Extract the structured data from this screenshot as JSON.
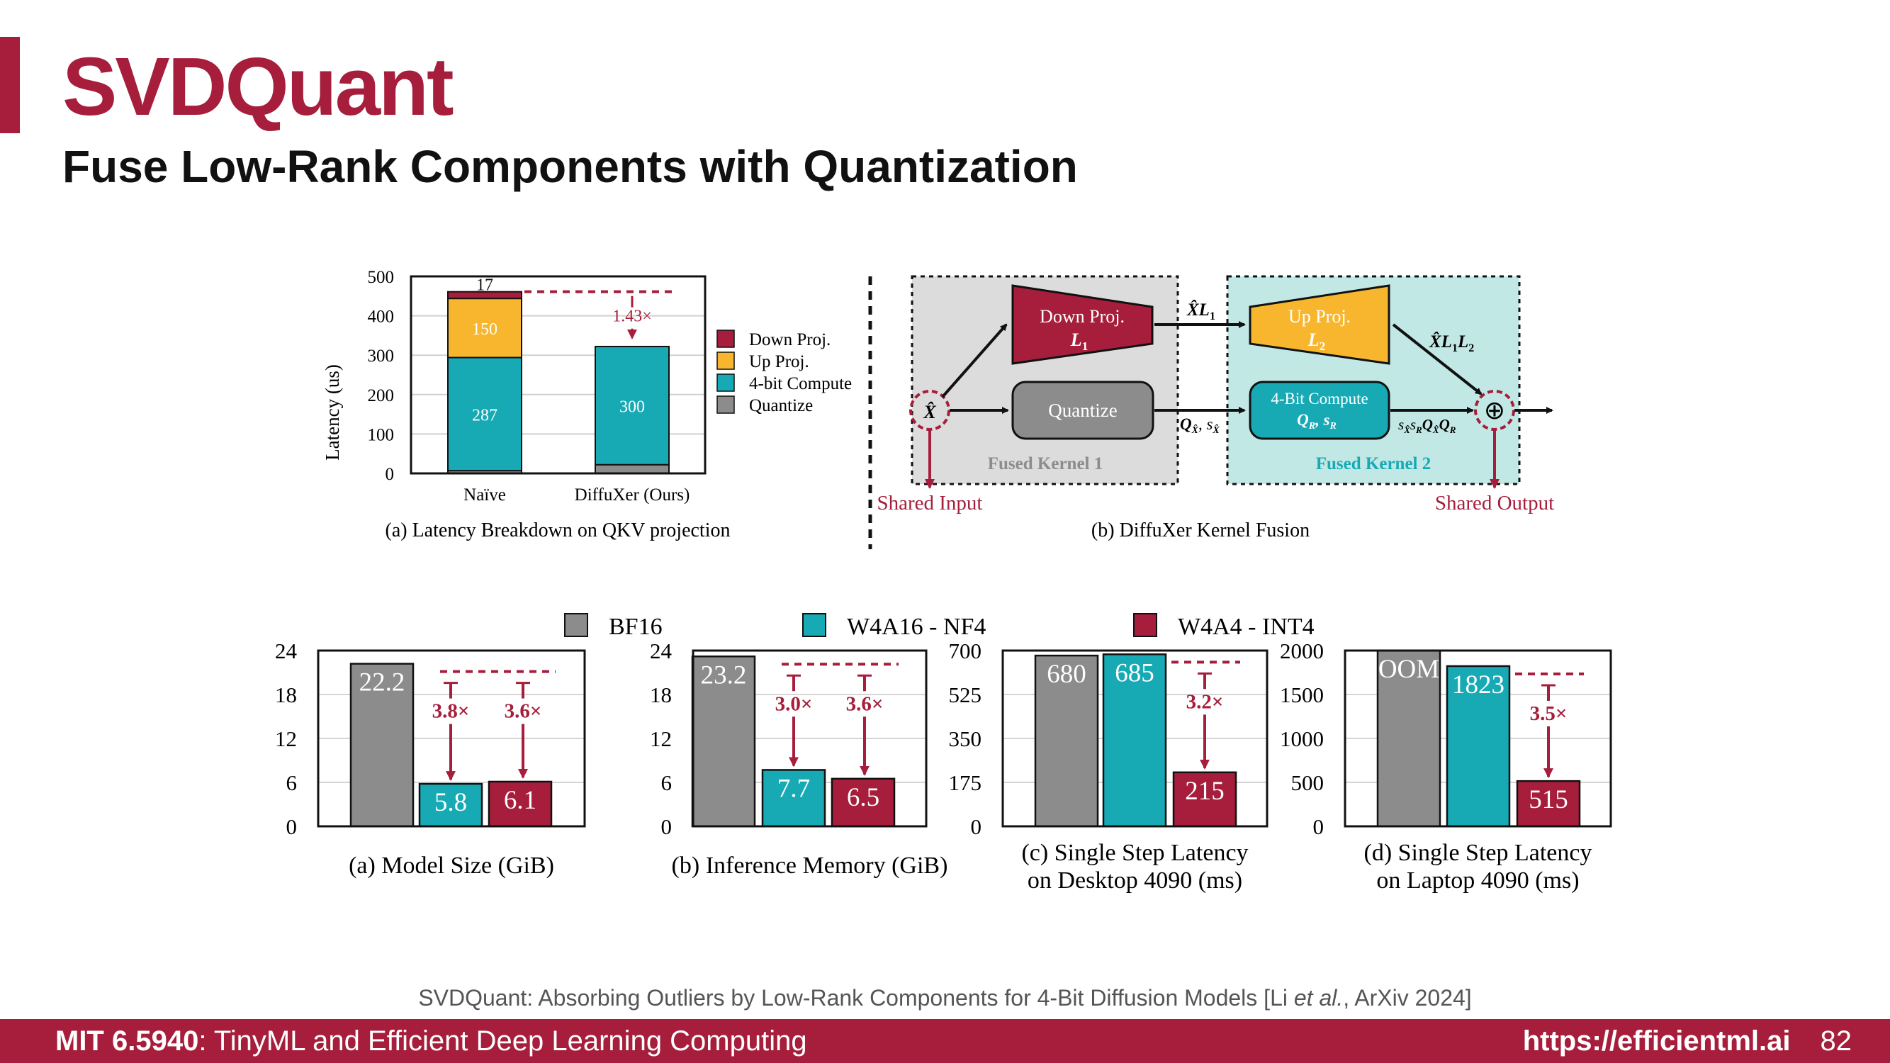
{
  "slide": {
    "title": "SVDQuant",
    "subtitle": "Fuse Low-Rank Components with Quantization",
    "citation_main": "SVDQuant: Absorbing Outliers by Low-Rank Components for 4-Bit Diffusion Models [Li ",
    "citation_etal": "et al.",
    "citation_end": ", ArXiv 2024]",
    "footer_course_code": "MIT 6.5940",
    "footer_course_name": ": TinyML and Efficient Deep Learning Computing",
    "footer_url": "https://efficientml.ai",
    "page_number": "82",
    "accent_color": "#a61e3b"
  },
  "kernel_diagram": {
    "caption": "(b) DiffuXer Kernel Fusion",
    "kernel1_label": "Fused Kernel 1",
    "kernel2_label": "Fused Kernel 2",
    "down_proj_label": "Down Proj.",
    "down_proj_sym": "L",
    "up_proj_label": "Up Proj.",
    "up_proj_sym": "L",
    "quantize_label": "Quantize",
    "compute_label": "4-Bit Compute",
    "input_sym": "X̂",
    "xl1_label": "X̂L",
    "xl1l2_label": "X̂L",
    "q_label": "Q",
    "qr_label": "Q",
    "out_formula": "sQQ",
    "plus_sym": "⊕",
    "shared_input": "Shared Input",
    "shared_output": "Shared Output",
    "colors": {
      "down": "#a61e3b",
      "up": "#f8b62e",
      "compute": "#17aab5",
      "quantize": "#8c8c8c",
      "kernel1_bg": "#dcdcdc",
      "kernel2_bg": "#c2e8e6"
    }
  },
  "chart_data": [
    {
      "id": "latency-breakdown",
      "type": "bar",
      "stacked": true,
      "title": "(a) Latency Breakdown on QKV projection",
      "ylabel": "Latency (us)",
      "xlabel": "",
      "ylim": [
        0,
        500
      ],
      "yticks": [
        0,
        100,
        200,
        300,
        400,
        500
      ],
      "categories": [
        "Naïve",
        "DiffuXer (Ours)"
      ],
      "series": [
        {
          "name": "Quantize",
          "color": "#8c8c8c",
          "values": [
            7,
            22
          ]
        },
        {
          "name": "4-bit Compute",
          "color": "#17aab5",
          "values": [
            287,
            300
          ]
        },
        {
          "name": "Up Proj.",
          "color": "#f8b62e",
          "values": [
            150,
            0
          ]
        },
        {
          "name": "Down Proj.",
          "color": "#a61e3b",
          "values": [
            17,
            0
          ]
        }
      ],
      "legend": [
        "Down Proj.",
        "Up Proj.",
        "4-bit Compute",
        "Quantize"
      ],
      "legend_placement": "right",
      "speedup_label": "1.43×",
      "grid": true
    },
    {
      "id": "model-size",
      "type": "bar",
      "title": "(a) Model Size (GiB)",
      "ylim": [
        0,
        24
      ],
      "yticks": [
        "0",
        "6",
        "12",
        "18",
        "24"
      ],
      "categories": [
        "BF16",
        "W4A16 - NF4",
        "W4A4 - INT4"
      ],
      "values": [
        22.2,
        5.8,
        6.1
      ],
      "value_labels": [
        "22.2",
        "5.8",
        "6.1"
      ],
      "annotations": [
        "3.8×",
        "3.6×"
      ],
      "grid": true
    },
    {
      "id": "inference-memory",
      "type": "bar",
      "title": "(b) Inference Memory (GiB)",
      "ylim": [
        0,
        24
      ],
      "yticks": [
        "0",
        "6",
        "12",
        "18",
        "24"
      ],
      "categories": [
        "BF16",
        "W4A16 - NF4",
        "W4A4 - INT4"
      ],
      "values": [
        23.2,
        7.7,
        6.5
      ],
      "value_labels": [
        "23.2",
        "7.7",
        "6.5"
      ],
      "annotations": [
        "3.0×",
        "3.6×"
      ],
      "grid": true
    },
    {
      "id": "desktop-latency",
      "type": "bar",
      "title": "(c) Single Step Latency",
      "title_line2": "on Desktop 4090 (ms)",
      "ylim": [
        0,
        700
      ],
      "yticks": [
        "0",
        "175",
        "350",
        "525",
        "700"
      ],
      "categories": [
        "BF16",
        "W4A16 - NF4",
        "W4A4 - INT4"
      ],
      "values": [
        680,
        685,
        215
      ],
      "value_labels": [
        "680",
        "685",
        "215"
      ],
      "annotations": [
        "3.2×"
      ],
      "grid": true
    },
    {
      "id": "laptop-latency",
      "type": "bar",
      "title": "(d) Single Step Latency",
      "title_line2": "on Laptop 4090 (ms)",
      "ylim": [
        0,
        2000
      ],
      "yticks": [
        "0",
        "500",
        "1000",
        "1500",
        "2000"
      ],
      "categories": [
        "BF16",
        "W4A16 - NF4",
        "W4A4 - INT4"
      ],
      "values": [
        null,
        1823,
        515
      ],
      "value_labels": [
        "OOM",
        "1823",
        "515"
      ],
      "annotations": [
        "3.5×"
      ],
      "grid": true
    }
  ],
  "legend_bottom": [
    {
      "name": "BF16",
      "color": "#8c8c8c"
    },
    {
      "name": "W4A16 - NF4",
      "color": "#17aab5"
    },
    {
      "name": "W4A4 - INT4",
      "color": "#a61e3b"
    }
  ]
}
